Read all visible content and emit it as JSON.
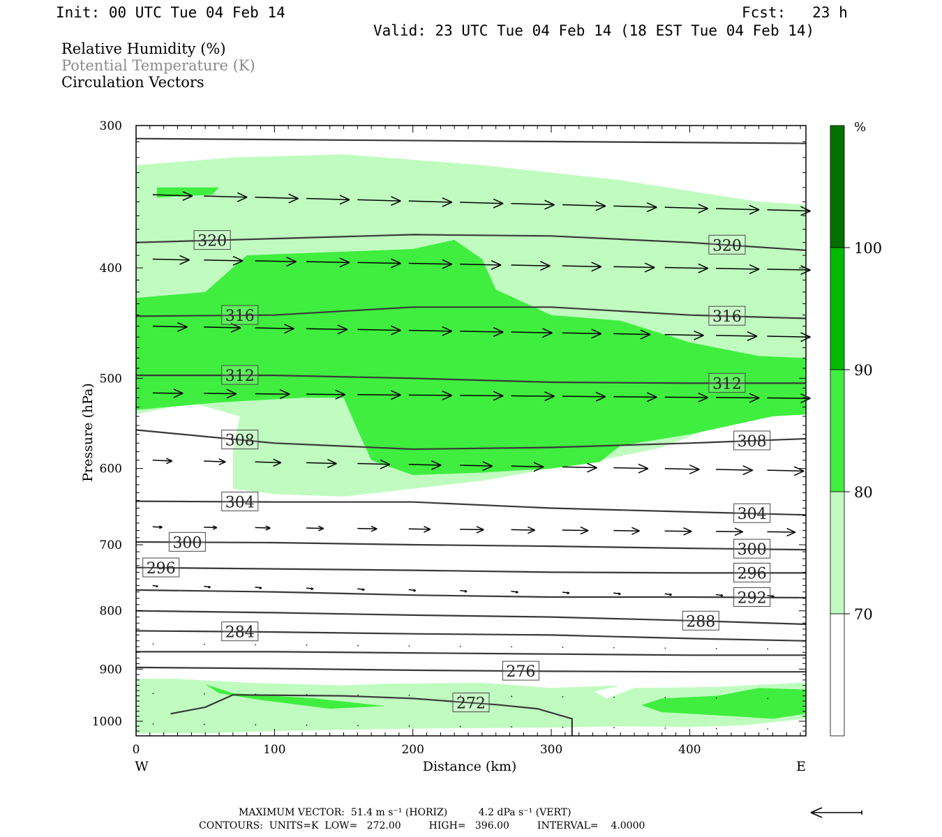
{
  "header": {
    "init": "Init: 00 UTC Tue 04 Feb 14",
    "fcst": "Fcst:   23 h",
    "valid": "Valid: 23 UTC Tue 04 Feb 14 (18 EST Tue 04 Feb 14)"
  },
  "legend": {
    "rh": "Relative Humidity (%)",
    "theta": "Potential Temperature (K)",
    "vectors": "Circulation Vectors"
  },
  "colors": {
    "rh_70_80": "#c0fcc0",
    "rh_80_90": "#40ee40",
    "rh_90_100": "#00ba00",
    "rh_100": "#007000",
    "contour": "#383838",
    "legend_theta": "#8a8a8a"
  },
  "chart_data": {
    "type": "cross-section",
    "xlabel": "Distance (km)",
    "ylabel": "Pressure (hPa)",
    "xlim": [
      0,
      484
    ],
    "ylim": [
      1030,
      300
    ],
    "y_scale": "log",
    "x_ticks": [
      "0",
      "100",
      "200",
      "300",
      "400"
    ],
    "y_ticks": [
      "300",
      "400",
      "500",
      "600",
      "700",
      "800",
      "900",
      "1000"
    ],
    "x_end_labels": {
      "left": "W",
      "right": "E"
    },
    "colorbar": {
      "unit": "%",
      "levels": [
        "70",
        "80",
        "90",
        "100"
      ]
    },
    "theta_contours": [
      {
        "label": "",
        "points": [
          [
            0,
            308
          ],
          [
            484,
            311
          ]
        ]
      },
      {
        "label": "320",
        "points": [
          [
            0,
            380
          ],
          [
            100,
            377
          ],
          [
            200,
            374
          ],
          [
            300,
            375
          ],
          [
            400,
            380
          ],
          [
            484,
            386
          ]
        ]
      },
      {
        "label": "316",
        "points": [
          [
            0,
            441
          ],
          [
            100,
            440
          ],
          [
            200,
            433
          ],
          [
            300,
            433
          ],
          [
            400,
            440
          ],
          [
            484,
            443
          ]
        ]
      },
      {
        "label": "312",
        "points": [
          [
            0,
            497
          ],
          [
            100,
            497
          ],
          [
            200,
            500
          ],
          [
            300,
            504
          ],
          [
            400,
            505
          ],
          [
            484,
            505
          ]
        ]
      },
      {
        "label": "308",
        "points": [
          [
            0,
            555
          ],
          [
            100,
            570
          ],
          [
            200,
            577
          ],
          [
            300,
            575
          ],
          [
            400,
            570
          ],
          [
            484,
            565
          ]
        ]
      },
      {
        "label": "304",
        "points": [
          [
            0,
            641
          ],
          [
            100,
            642
          ],
          [
            200,
            642
          ],
          [
            300,
            650
          ],
          [
            400,
            655
          ],
          [
            484,
            659
          ]
        ]
      },
      {
        "label": "300",
        "points": [
          [
            0,
            696
          ],
          [
            100,
            697
          ],
          [
            200,
            700
          ],
          [
            300,
            702
          ],
          [
            400,
            705
          ],
          [
            484,
            707
          ]
        ]
      },
      {
        "label": "296",
        "points": [
          [
            0,
            733
          ],
          [
            100,
            735
          ],
          [
            200,
            737
          ],
          [
            300,
            740
          ],
          [
            400,
            741
          ],
          [
            484,
            741
          ]
        ]
      },
      {
        "label": "292",
        "points": [
          [
            0,
            767
          ],
          [
            100,
            770
          ],
          [
            200,
            775
          ],
          [
            300,
            778
          ],
          [
            400,
            778
          ],
          [
            484,
            779
          ]
        ]
      },
      {
        "label": "288",
        "points": [
          [
            0,
            800
          ],
          [
            100,
            803
          ],
          [
            200,
            807
          ],
          [
            300,
            810
          ],
          [
            400,
            816
          ],
          [
            484,
            822
          ]
        ]
      },
      {
        "label": "284",
        "points": [
          [
            0,
            833
          ],
          [
            100,
            835
          ],
          [
            200,
            838
          ],
          [
            300,
            840
          ],
          [
            400,
            846
          ],
          [
            484,
            850
          ]
        ]
      },
      {
        "label": "",
        "points": [
          [
            0,
            869
          ],
          [
            100,
            869
          ],
          [
            200,
            871
          ],
          [
            300,
            873
          ],
          [
            400,
            875
          ],
          [
            484,
            875
          ]
        ]
      },
      {
        "label": "276",
        "points": [
          [
            0,
            897
          ],
          [
            100,
            899
          ],
          [
            200,
            902
          ],
          [
            300,
            904
          ],
          [
            400,
            905
          ],
          [
            484,
            905
          ]
        ]
      },
      {
        "label": "272",
        "points": [
          [
            25,
            985
          ],
          [
            50,
            972
          ],
          [
            70,
            948
          ],
          [
            150,
            950
          ],
          [
            200,
            955
          ],
          [
            260,
            967
          ],
          [
            290,
            975
          ],
          [
            315,
            995
          ],
          [
            315,
            1030
          ]
        ]
      }
    ],
    "rh_regions": [
      {
        "level": "70-80",
        "points": [
          [
            0,
            325
          ],
          [
            70,
            320
          ],
          [
            150,
            318
          ],
          [
            250,
            325
          ],
          [
            350,
            335
          ],
          [
            450,
            350
          ],
          [
            484,
            352
          ],
          [
            484,
            535
          ],
          [
            460,
            535
          ],
          [
            420,
            550
          ],
          [
            380,
            575
          ],
          [
            330,
            592
          ],
          [
            300,
            600
          ],
          [
            250,
            615
          ],
          [
            200,
            625
          ],
          [
            150,
            635
          ],
          [
            100,
            632
          ],
          [
            70,
            625
          ],
          [
            70,
            578
          ],
          [
            75,
            540
          ],
          [
            40,
            525
          ],
          [
            0,
            538
          ]
        ]
      },
      {
        "level": "80-90",
        "points": [
          [
            0,
            425
          ],
          [
            50,
            420
          ],
          [
            80,
            390
          ],
          [
            200,
            385
          ],
          [
            230,
            378
          ],
          [
            250,
            393
          ],
          [
            260,
            418
          ],
          [
            300,
            440
          ],
          [
            350,
            445
          ],
          [
            400,
            465
          ],
          [
            450,
            478
          ],
          [
            484,
            480
          ],
          [
            484,
            538
          ],
          [
            460,
            540
          ],
          [
            400,
            560
          ],
          [
            350,
            573
          ],
          [
            335,
            592
          ],
          [
            300,
            600
          ],
          [
            250,
            605
          ],
          [
            200,
            608
          ],
          [
            170,
            590
          ],
          [
            160,
            555
          ],
          [
            150,
            520
          ],
          [
            120,
            520
          ],
          [
            60,
            525
          ],
          [
            0,
            533
          ]
        ]
      },
      {
        "level": "80-90",
        "points": [
          [
            15,
            340
          ],
          [
            60,
            340
          ],
          [
            55,
            345
          ],
          [
            15,
            347
          ]
        ]
      },
      {
        "level": "70-80",
        "points": [
          [
            0,
            918
          ],
          [
            30,
            918
          ],
          [
            80,
            925
          ],
          [
            150,
            930
          ],
          [
            180,
            927
          ],
          [
            250,
            925
          ],
          [
            300,
            935
          ],
          [
            350,
            930
          ],
          [
            300,
            962
          ],
          [
            330,
            940
          ],
          [
            340,
            955
          ],
          [
            360,
            935
          ],
          [
            420,
            933
          ],
          [
            480,
            925
          ],
          [
            484,
            925
          ],
          [
            484,
            995
          ],
          [
            440,
            1008
          ],
          [
            400,
            1012
          ],
          [
            350,
            1010
          ],
          [
            300,
            1013
          ],
          [
            200,
            1015
          ],
          [
            100,
            1020
          ],
          [
            50,
            1025
          ],
          [
            0,
            1025
          ]
        ]
      },
      {
        "level": "80-90",
        "points": [
          [
            50,
            928
          ],
          [
            70,
            945
          ],
          [
            130,
            955
          ],
          [
            180,
            970
          ],
          [
            140,
            975
          ],
          [
            90,
            958
          ],
          [
            60,
            945
          ]
        ]
      },
      {
        "level": "80-90",
        "points": [
          [
            365,
            968
          ],
          [
            380,
            955
          ],
          [
            420,
            950
          ],
          [
            450,
            935
          ],
          [
            484,
            938
          ],
          [
            484,
            985
          ],
          [
            460,
            995
          ],
          [
            420,
            988
          ],
          [
            380,
            982
          ]
        ]
      }
    ],
    "max_vector": "MAXIMUM VECTOR:  51.4 m s⁻¹ (HORIZ)          4.2 dPa s⁻¹ (VERT)",
    "contour_info": "CONTOURS:  UNITS=K  LOW=   272.00         HIGH=   396.00         INTERVAL=    4.0000"
  }
}
